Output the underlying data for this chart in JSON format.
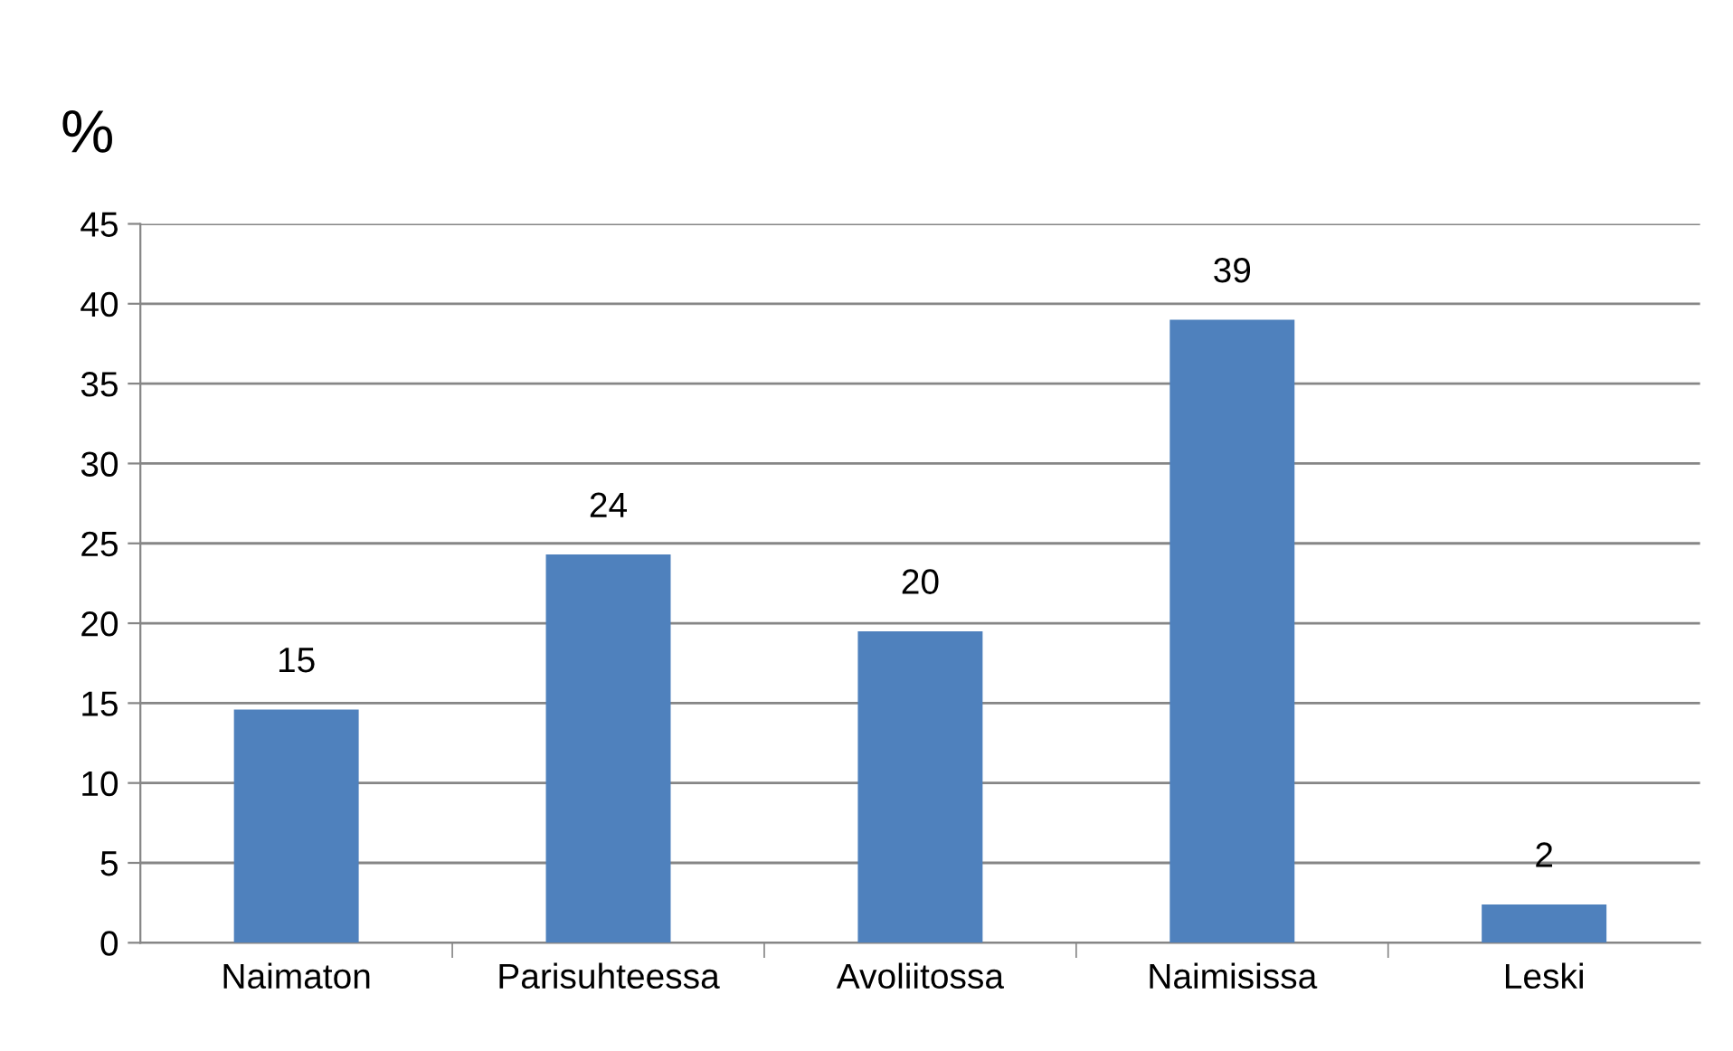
{
  "chart_data": {
    "type": "bar",
    "ylabel": "%",
    "categories": [
      "Naimaton",
      "Parisuhteessa",
      "Avoliitossa",
      "Naimisissa",
      "Leski"
    ],
    "values": [
      14.6,
      24.3,
      19.5,
      39.0,
      2.4
    ],
    "value_labels": [
      "15",
      "24",
      "20",
      "39",
      "2"
    ],
    "color": "#4f81bd",
    "ylim": [
      0,
      45
    ],
    "yticks": [
      0,
      5,
      10,
      15,
      20,
      25,
      30,
      35,
      40,
      45
    ],
    "grid": "y",
    "legend": false
  }
}
